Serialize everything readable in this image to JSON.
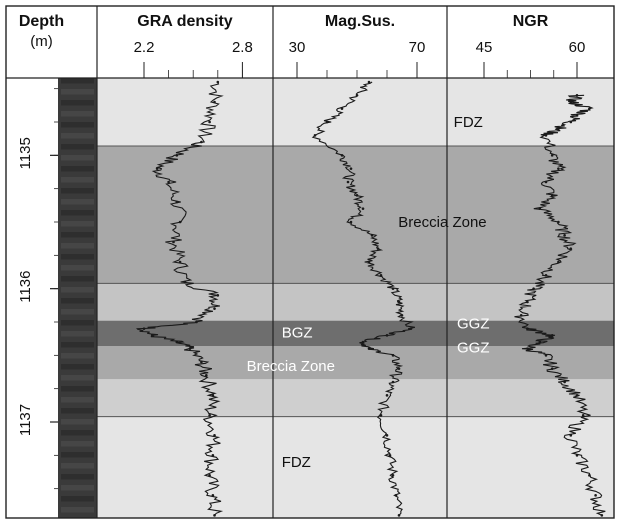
{
  "chart_data": {
    "type": "line",
    "title": "",
    "depth_axis": {
      "label": "Depth",
      "unit": "(m)",
      "range": [
        1134.42,
        1137.72
      ],
      "ticks": [
        1135,
        1136,
        1137
      ],
      "tick_labels": [
        "1135",
        "1136",
        "1137"
      ]
    },
    "panels": [
      {
        "name": "GRA density",
        "xlim": [
          1.95,
          2.95
        ],
        "ticks": [
          2.2,
          2.8
        ],
        "tick_labels": [
          "2.2",
          "2.8"
        ],
        "color": "#1a1a1a",
        "series": {
          "depth": [
            1134.45,
            1134.6,
            1134.75,
            1134.9,
            1135.0,
            1135.1,
            1135.2,
            1135.35,
            1135.5,
            1135.65,
            1135.8,
            1135.95,
            1136.05,
            1136.15,
            1136.25,
            1136.3,
            1136.35,
            1136.4,
            1136.45,
            1136.55,
            1136.65,
            1136.8,
            1136.95,
            1137.1,
            1137.25,
            1137.4,
            1137.55,
            1137.7
          ],
          "values": [
            2.65,
            2.63,
            2.6,
            2.55,
            2.4,
            2.28,
            2.35,
            2.4,
            2.42,
            2.38,
            2.42,
            2.45,
            2.65,
            2.63,
            2.52,
            2.2,
            2.25,
            2.4,
            2.48,
            2.55,
            2.58,
            2.62,
            2.6,
            2.63,
            2.62,
            2.6,
            2.62,
            2.63
          ]
        }
      },
      {
        "name": "Mag.Sus.",
        "xlim": [
          24,
          78
        ],
        "ticks": [
          30,
          70
        ],
        "tick_labels": [
          "30",
          "70"
        ],
        "color": "#1a1a1a",
        "series": {
          "depth": [
            1134.45,
            1134.55,
            1134.65,
            1134.75,
            1134.85,
            1135.0,
            1135.1,
            1135.2,
            1135.3,
            1135.4,
            1135.5,
            1135.6,
            1135.7,
            1135.8,
            1135.9,
            1136.0,
            1136.1,
            1136.2,
            1136.3,
            1136.35,
            1136.4,
            1136.45,
            1136.5,
            1136.6,
            1136.7,
            1136.8,
            1136.95,
            1137.1,
            1137.25,
            1137.4,
            1137.55,
            1137.7
          ],
          "values": [
            54,
            50,
            45,
            40,
            36,
            45,
            48,
            47,
            50,
            52,
            48,
            55,
            57,
            54,
            58,
            62,
            64,
            65,
            68,
            60,
            52,
            54,
            62,
            64,
            62,
            60,
            58,
            60,
            61,
            62,
            63,
            64
          ]
        }
      },
      {
        "name": "NGR",
        "xlim": [
          40,
          65
        ],
        "ticks": [
          45,
          60
        ],
        "tick_labels": [
          "45",
          "60"
        ],
        "color": "#1a1a1a",
        "series": {
          "depth": [
            1134.55,
            1134.6,
            1134.65,
            1134.7,
            1134.75,
            1134.8,
            1134.85,
            1135.0,
            1135.1,
            1135.2,
            1135.3,
            1135.4,
            1135.5,
            1135.6,
            1135.7,
            1135.8,
            1135.9,
            1136.0,
            1136.1,
            1136.2,
            1136.3,
            1136.35,
            1136.4,
            1136.45,
            1136.5,
            1136.6,
            1136.7,
            1136.8,
            1136.95,
            1137.1,
            1137.25,
            1137.4,
            1137.55,
            1137.7
          ],
          "values": [
            60,
            59,
            62,
            60,
            59,
            57,
            55,
            56,
            57,
            55,
            56,
            54,
            57,
            58,
            59,
            57,
            55,
            53,
            52,
            51,
            52,
            56,
            54,
            52,
            55,
            56,
            58,
            60,
            61,
            59,
            60,
            62,
            63,
            64
          ]
        }
      }
    ],
    "zones": [
      {
        "top": 1134.42,
        "bottom": 1134.93,
        "shade": "#e5e5e5"
      },
      {
        "top": 1134.93,
        "bottom": 1135.96,
        "shade": "#a9a9a9"
      },
      {
        "top": 1135.96,
        "bottom": 1136.24,
        "shade": "#c4c4c4"
      },
      {
        "top": 1136.24,
        "bottom": 1136.43,
        "shade": "#6e6e6e"
      },
      {
        "top": 1136.43,
        "bottom": 1136.68,
        "shade": "#a9a9a9"
      },
      {
        "top": 1136.68,
        "bottom": 1136.96,
        "shade": "#cfcfcf"
      },
      {
        "top": 1136.96,
        "bottom": 1137.72,
        "shade": "#e5e5e5"
      }
    ],
    "boundaries": [
      1134.93,
      1135.96,
      1136.96
    ],
    "annotations": [
      {
        "text": "FDZ",
        "depth": 1134.75,
        "panel": 3,
        "offset": 0.04,
        "color": "#111111"
      },
      {
        "text": "Breccia Zone",
        "depth": 1135.5,
        "panel": 2,
        "offset": 0.72,
        "color": "#111111"
      },
      {
        "text": "BGZ",
        "depth": 1136.33,
        "panel": 2,
        "offset": 0.05,
        "color": "#ffffff"
      },
      {
        "text": "GGZ",
        "depth": 1136.26,
        "panel": 3,
        "offset": 0.06,
        "color": "#ffffff"
      },
      {
        "text": "GGZ",
        "depth": 1136.44,
        "panel": 3,
        "offset": 0.06,
        "color": "#ffffff"
      },
      {
        "text": "Breccia Zone",
        "depth": 1136.58,
        "panel": 1,
        "offset": 0.85,
        "color": "#ffffff"
      },
      {
        "text": "FDZ",
        "depth": 1137.3,
        "panel": 2,
        "offset": 0.05,
        "color": "#111111"
      }
    ]
  }
}
